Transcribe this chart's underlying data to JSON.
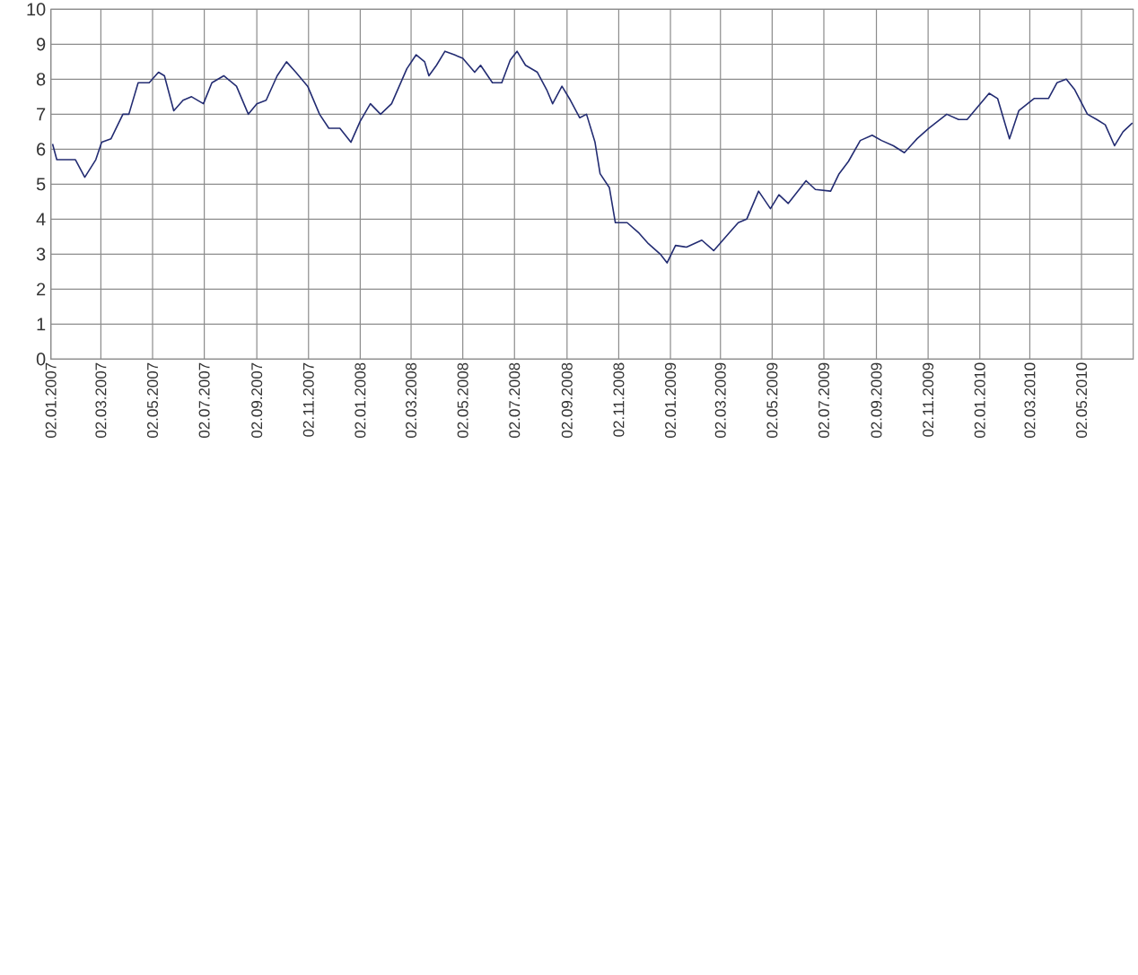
{
  "chart_data": {
    "type": "line",
    "color": "#232c72",
    "x": [
      "2007-01-04",
      "2007-01-09",
      "2007-01-31",
      "2007-02-11",
      "2007-02-24",
      "2007-03-03",
      "2007-03-14",
      "2007-03-28",
      "2007-04-04",
      "2007-04-15",
      "2007-04-28",
      "2007-05-09",
      "2007-05-16",
      "2007-05-27",
      "2007-06-07",
      "2007-06-17",
      "2007-07-01",
      "2007-07-11",
      "2007-07-25",
      "2007-08-09",
      "2007-08-23",
      "2007-09-02",
      "2007-09-13",
      "2007-09-26",
      "2007-10-07",
      "2007-10-18",
      "2007-11-01",
      "2007-11-15",
      "2007-11-26",
      "2007-12-09",
      "2007-12-22",
      "2008-01-02",
      "2008-01-14",
      "2008-01-26",
      "2008-02-08",
      "2008-02-26",
      "2008-03-08",
      "2008-03-18",
      "2008-03-23",
      "2008-04-01",
      "2008-04-11",
      "2008-04-22",
      "2008-05-02",
      "2008-05-16",
      "2008-05-23",
      "2008-06-06",
      "2008-06-17",
      "2008-06-27",
      "2008-07-05",
      "2008-07-15",
      "2008-07-29",
      "2008-08-09",
      "2008-08-16",
      "2008-08-27",
      "2008-09-06",
      "2008-09-17",
      "2008-09-25",
      "2008-10-05",
      "2008-10-11",
      "2008-10-22",
      "2008-10-29",
      "2008-11-12",
      "2008-11-26",
      "2008-12-07",
      "2008-12-21",
      "2008-12-29",
      "2009-01-08",
      "2009-01-21",
      "2009-02-08",
      "2009-02-22",
      "2009-03-12",
      "2009-03-23",
      "2009-04-02",
      "2009-04-16",
      "2009-04-30",
      "2009-05-10",
      "2009-05-21",
      "2009-06-11",
      "2009-06-22",
      "2009-07-10",
      "2009-07-20",
      "2009-07-31",
      "2009-08-14",
      "2009-08-28",
      "2009-09-08",
      "2009-09-22",
      "2009-10-05",
      "2009-10-20",
      "2009-11-03",
      "2009-11-24",
      "2009-12-08",
      "2009-12-18",
      "2010-01-13",
      "2010-01-23",
      "2010-02-06",
      "2010-02-17",
      "2010-03-07",
      "2010-03-24",
      "2010-04-03",
      "2010-04-14",
      "2010-04-24",
      "2010-05-09",
      "2010-05-20",
      "2010-05-30",
      "2010-06-10",
      "2010-06-20",
      "2010-07-01"
    ],
    "values": [
      6.15,
      5.7,
      5.7,
      5.2,
      5.7,
      6.2,
      6.3,
      7.0,
      7.0,
      7.9,
      7.9,
      8.2,
      8.1,
      7.1,
      7.4,
      7.5,
      7.3,
      7.9,
      8.1,
      7.8,
      7.0,
      7.3,
      7.4,
      8.1,
      8.5,
      8.2,
      7.8,
      7.0,
      6.6,
      6.6,
      6.2,
      6.8,
      7.3,
      7.0,
      7.3,
      8.3,
      8.7,
      8.5,
      8.1,
      8.4,
      8.8,
      8.7,
      8.6,
      8.2,
      8.4,
      7.9,
      7.9,
      8.55,
      8.8,
      8.4,
      8.2,
      7.7,
      7.3,
      7.8,
      7.4,
      6.9,
      7.0,
      6.2,
      5.3,
      4.9,
      3.9,
      3.9,
      3.6,
      3.3,
      3.0,
      2.75,
      3.25,
      3.2,
      3.4,
      3.1,
      3.6,
      3.9,
      4.0,
      4.8,
      4.3,
      4.7,
      4.45,
      5.1,
      4.85,
      4.8,
      5.3,
      5.65,
      6.25,
      6.4,
      6.25,
      6.1,
      5.9,
      6.3,
      6.6,
      7.0,
      6.85,
      6.85,
      7.6,
      7.45,
      6.3,
      7.1,
      7.45,
      7.45,
      7.9,
      8.0,
      7.7,
      7.0,
      6.85,
      6.7,
      6.1,
      6.5,
      6.75
    ],
    "xlim": [
      "2007-01-02",
      "2010-07-02"
    ],
    "xticks": [
      {
        "value": "2007-01-02",
        "label": "02.01.2007"
      },
      {
        "value": "2007-03-02",
        "label": "02.03.2007"
      },
      {
        "value": "2007-05-02",
        "label": "02.05.2007"
      },
      {
        "value": "2007-07-02",
        "label": "02.07.2007"
      },
      {
        "value": "2007-09-02",
        "label": "02.09.2007"
      },
      {
        "value": "2007-11-02",
        "label": "02.11.2007"
      },
      {
        "value": "2008-01-02",
        "label": "02.01.2008"
      },
      {
        "value": "2008-03-02",
        "label": "02.03.2008"
      },
      {
        "value": "2008-05-02",
        "label": "02.05.2008"
      },
      {
        "value": "2008-07-02",
        "label": "02.07.2008"
      },
      {
        "value": "2008-09-02",
        "label": "02.09.2008"
      },
      {
        "value": "2008-11-02",
        "label": "02.11.2008"
      },
      {
        "value": "2009-01-02",
        "label": "02.01.2009"
      },
      {
        "value": "2009-03-02",
        "label": "02.03.2009"
      },
      {
        "value": "2009-05-02",
        "label": "02.05.2009"
      },
      {
        "value": "2009-07-02",
        "label": "02.07.2009"
      },
      {
        "value": "2009-09-02",
        "label": "02.09.2009"
      },
      {
        "value": "2009-11-02",
        "label": "02.11.2009"
      },
      {
        "value": "2010-01-02",
        "label": "02.01.2010"
      },
      {
        "value": "2010-03-02",
        "label": "02.03.2010"
      },
      {
        "value": "2010-05-02",
        "label": "02.05.2010"
      }
    ],
    "ylim": [
      0,
      10
    ],
    "yticks": [
      0,
      1,
      2,
      3,
      4,
      5,
      6,
      7,
      8,
      9,
      10
    ],
    "grid": true,
    "marker": "none",
    "line_style": "solid"
  }
}
